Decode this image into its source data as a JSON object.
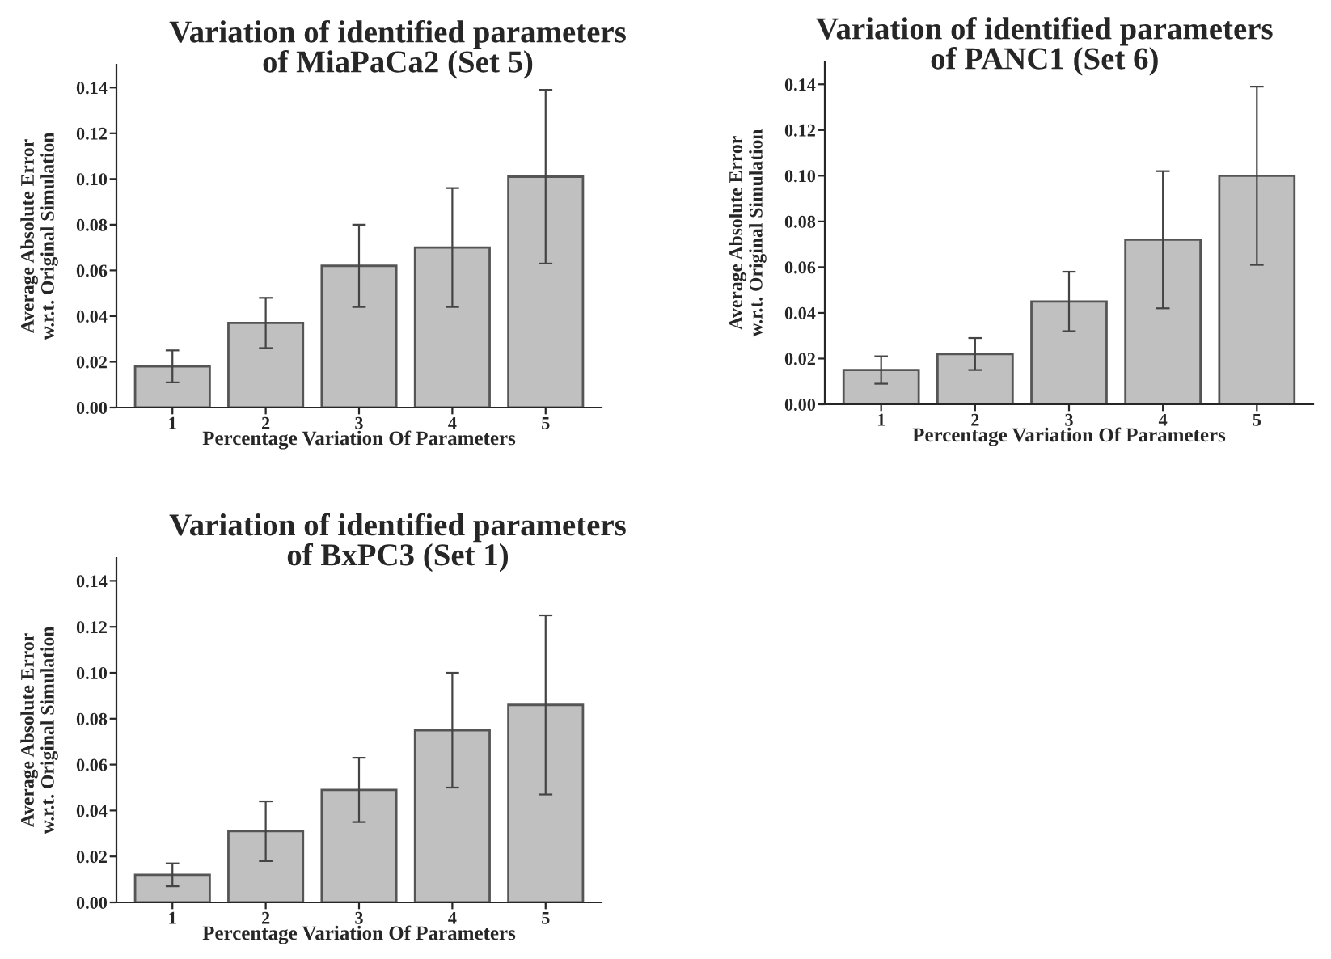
{
  "chart_data": [
    {
      "type": "bar",
      "title": "Variation of identified parameters\nof MiaPaCa2 (Set 5)",
      "xlabel": "Percentage Variation Of Parameters",
      "ylabel": "Average Absolute Error\nw.r.t. Original Simulation",
      "categories": [
        "1",
        "2",
        "3",
        "4",
        "5"
      ],
      "values": [
        0.018,
        0.037,
        0.062,
        0.07,
        0.101
      ],
      "errors": [
        [
          0.011,
          0.025
        ],
        [
          0.026,
          0.048
        ],
        [
          0.044,
          0.08
        ],
        [
          0.044,
          0.096
        ],
        [
          0.063,
          0.139
        ]
      ],
      "color": "#c0c0c0",
      "ylim": [
        0,
        0.15
      ],
      "yticks": [
        {
          "value": 0,
          "label": "0.00"
        },
        {
          "value": 0.02,
          "label": "0.02"
        },
        {
          "value": 0.04,
          "label": "0.04"
        },
        {
          "value": 0.06,
          "label": "0.06"
        },
        {
          "value": 0.08,
          "label": "0.08"
        },
        {
          "value": 0.1,
          "label": "0.10"
        },
        {
          "value": 0.12,
          "label": "0.12"
        },
        {
          "value": 0.14,
          "label": "0.14"
        }
      ],
      "grid": false,
      "legend": false
    },
    {
      "type": "bar",
      "title": "Variation of identified parameters\nof PANC1 (Set 6)",
      "xlabel": "Percentage Variation Of Parameters",
      "ylabel": "Average Absolute Error\nw.r.t. Original Simulation",
      "categories": [
        "1",
        "2",
        "3",
        "4",
        "5"
      ],
      "values": [
        0.015,
        0.022,
        0.045,
        0.072,
        0.1
      ],
      "errors": [
        [
          0.009,
          0.021
        ],
        [
          0.015,
          0.029
        ],
        [
          0.032,
          0.058
        ],
        [
          0.042,
          0.102
        ],
        [
          0.061,
          0.139
        ]
      ],
      "color": "#c0c0c0",
      "ylim": [
        0,
        0.15
      ],
      "yticks": [
        {
          "value": 0,
          "label": "0.00"
        },
        {
          "value": 0.02,
          "label": "0.02"
        },
        {
          "value": 0.04,
          "label": "0.04"
        },
        {
          "value": 0.06,
          "label": "0.06"
        },
        {
          "value": 0.08,
          "label": "0.08"
        },
        {
          "value": 0.1,
          "label": "0.10"
        },
        {
          "value": 0.12,
          "label": "0.12"
        },
        {
          "value": 0.14,
          "label": "0.14"
        }
      ],
      "grid": false,
      "legend": false
    },
    {
      "type": "bar",
      "title": "Variation of identified parameters\nof BxPC3 (Set 1)",
      "xlabel": "Percentage Variation Of Parameters",
      "ylabel": "Average Absolute Error\nw.r.t. Original Simulation",
      "categories": [
        "1",
        "2",
        "3",
        "4",
        "5"
      ],
      "values": [
        0.012,
        0.031,
        0.049,
        0.075,
        0.086
      ],
      "errors": [
        [
          0.007,
          0.017
        ],
        [
          0.018,
          0.044
        ],
        [
          0.035,
          0.063
        ],
        [
          0.05,
          0.1
        ],
        [
          0.047,
          0.125
        ]
      ],
      "color": "#c0c0c0",
      "ylim": [
        0,
        0.15
      ],
      "yticks": [
        {
          "value": 0,
          "label": "0.00"
        },
        {
          "value": 0.02,
          "label": "0.02"
        },
        {
          "value": 0.04,
          "label": "0.04"
        },
        {
          "value": 0.06,
          "label": "0.06"
        },
        {
          "value": 0.08,
          "label": "0.08"
        },
        {
          "value": 0.1,
          "label": "0.10"
        },
        {
          "value": 0.12,
          "label": "0.12"
        },
        {
          "value": 0.14,
          "label": "0.14"
        }
      ],
      "grid": false,
      "legend": false
    }
  ]
}
